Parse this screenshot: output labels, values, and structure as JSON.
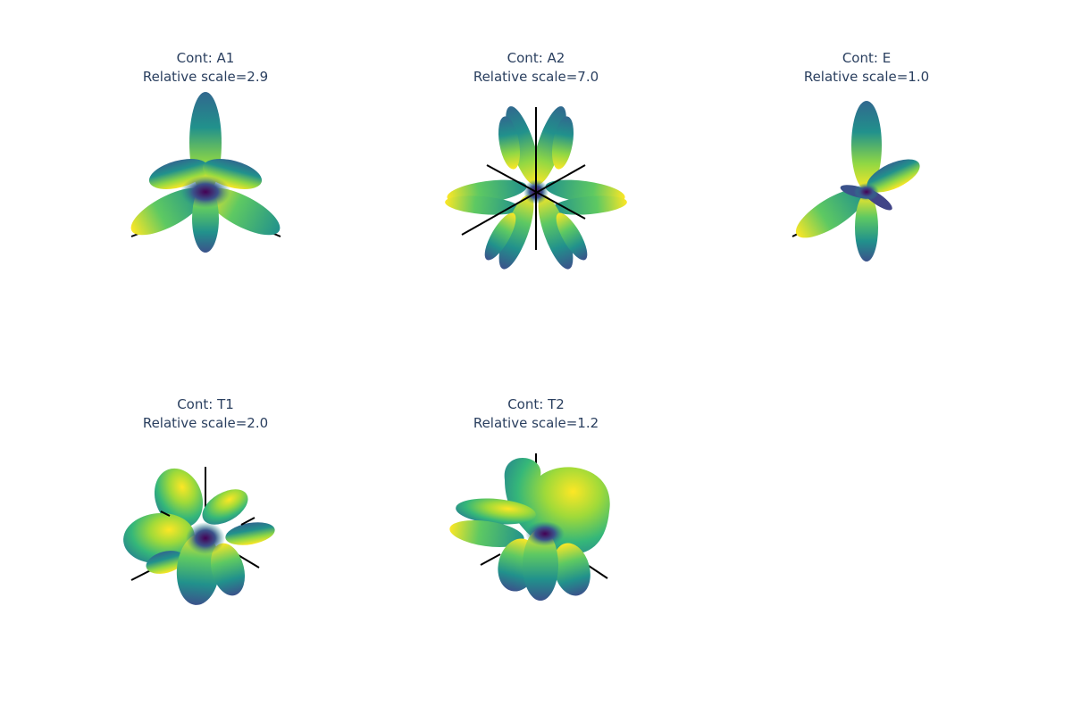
{
  "colors": {
    "title": "#2a3f5f",
    "axis": "#000000",
    "colorscale": [
      "#440154",
      "#3b528b",
      "#21918c",
      "#5ec962",
      "#fde725"
    ]
  },
  "panels": [
    {
      "id": "A1",
      "title_line1": "Cont: A1",
      "title_line2": "Relative scale=2.9",
      "shape": "six-lobed flower with one large upper lobe"
    },
    {
      "id": "A2",
      "title_line1": "Cont: A2",
      "title_line2": "Relative scale=7.0",
      "shape": "many-lobed star"
    },
    {
      "id": "E",
      "title_line1": "Cont: E",
      "title_line2": "Relative scale=1.0",
      "shape": "three main lobes with small center lobes"
    },
    {
      "id": "T1",
      "title_line1": "Cont: T1",
      "title_line2": "Relative scale=2.0",
      "shape": "twisted multi-lobe surface"
    },
    {
      "id": "T2",
      "title_line1": "Cont: T2",
      "title_line2": "Relative scale=1.2",
      "shape": "large heart-shaped upper lobe with lower lobes"
    }
  ]
}
